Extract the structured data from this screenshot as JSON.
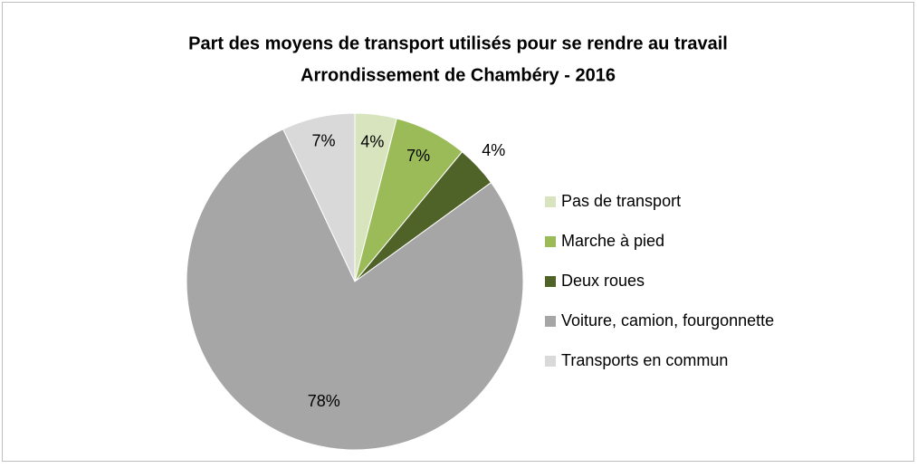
{
  "chart_data": {
    "type": "pie",
    "title": "Part des moyens de transport utilisés pour se rendre au travail",
    "subtitle": "Arrondissement de Chambéry - 2016",
    "categories": [
      "Pas de transport",
      "Marche à pied",
      "Deux roues",
      "Voiture, camion, fourgonnette",
      "Transports en commun"
    ],
    "values": [
      4,
      7,
      4,
      78,
      7
    ],
    "value_labels": [
      "4%",
      "7%",
      "4%",
      "78%",
      "7%"
    ],
    "colors": [
      "#d7e4bd",
      "#9bbb59",
      "#4f6228",
      "#a6a6a6",
      "#d9d9d9"
    ],
    "legend": "right"
  }
}
